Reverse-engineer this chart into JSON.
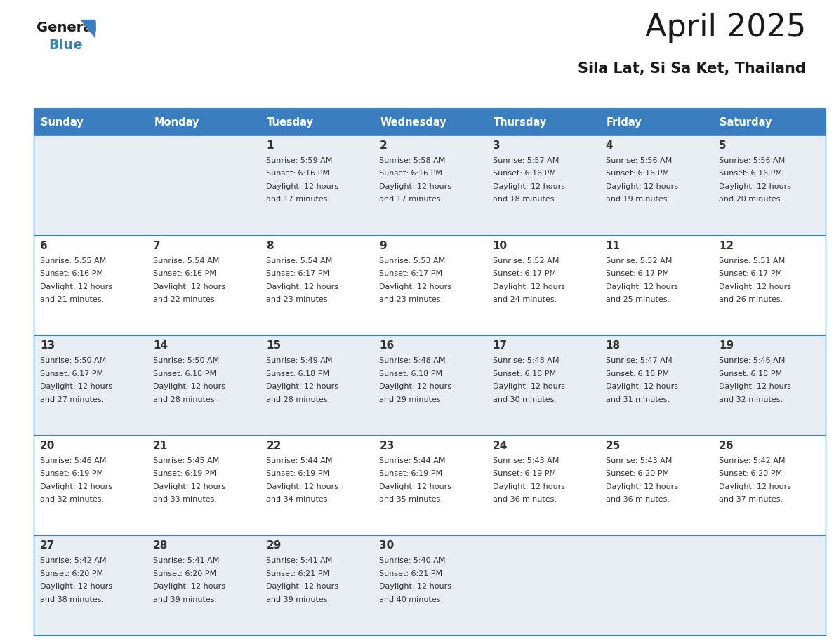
{
  "title": "April 2025",
  "subtitle": "Sila Lat, Si Sa Ket, Thailand",
  "header_color": "#3a7ebf",
  "header_text_color": "#ffffff",
  "cell_bg_color": "#e8eef4",
  "cell_bg_white": "#ffffff",
  "border_color": "#3a7ebf",
  "text_color": "#333333",
  "days_of_week": [
    "Sunday",
    "Monday",
    "Tuesday",
    "Wednesday",
    "Thursday",
    "Friday",
    "Saturday"
  ],
  "weeks": [
    [
      {
        "day": null,
        "info": null
      },
      {
        "day": null,
        "info": null
      },
      {
        "day": 1,
        "info": {
          "sunrise": "5:59 AM",
          "sunset": "6:16 PM",
          "daylight": "12 hours and 17 minutes."
        }
      },
      {
        "day": 2,
        "info": {
          "sunrise": "5:58 AM",
          "sunset": "6:16 PM",
          "daylight": "12 hours and 17 minutes."
        }
      },
      {
        "day": 3,
        "info": {
          "sunrise": "5:57 AM",
          "sunset": "6:16 PM",
          "daylight": "12 hours and 18 minutes."
        }
      },
      {
        "day": 4,
        "info": {
          "sunrise": "5:56 AM",
          "sunset": "6:16 PM",
          "daylight": "12 hours and 19 minutes."
        }
      },
      {
        "day": 5,
        "info": {
          "sunrise": "5:56 AM",
          "sunset": "6:16 PM",
          "daylight": "12 hours and 20 minutes."
        }
      }
    ],
    [
      {
        "day": 6,
        "info": {
          "sunrise": "5:55 AM",
          "sunset": "6:16 PM",
          "daylight": "12 hours and 21 minutes."
        }
      },
      {
        "day": 7,
        "info": {
          "sunrise": "5:54 AM",
          "sunset": "6:16 PM",
          "daylight": "12 hours and 22 minutes."
        }
      },
      {
        "day": 8,
        "info": {
          "sunrise": "5:54 AM",
          "sunset": "6:17 PM",
          "daylight": "12 hours and 23 minutes."
        }
      },
      {
        "day": 9,
        "info": {
          "sunrise": "5:53 AM",
          "sunset": "6:17 PM",
          "daylight": "12 hours and 23 minutes."
        }
      },
      {
        "day": 10,
        "info": {
          "sunrise": "5:52 AM",
          "sunset": "6:17 PM",
          "daylight": "12 hours and 24 minutes."
        }
      },
      {
        "day": 11,
        "info": {
          "sunrise": "5:52 AM",
          "sunset": "6:17 PM",
          "daylight": "12 hours and 25 minutes."
        }
      },
      {
        "day": 12,
        "info": {
          "sunrise": "5:51 AM",
          "sunset": "6:17 PM",
          "daylight": "12 hours and 26 minutes."
        }
      }
    ],
    [
      {
        "day": 13,
        "info": {
          "sunrise": "5:50 AM",
          "sunset": "6:17 PM",
          "daylight": "12 hours and 27 minutes."
        }
      },
      {
        "day": 14,
        "info": {
          "sunrise": "5:50 AM",
          "sunset": "6:18 PM",
          "daylight": "12 hours and 28 minutes."
        }
      },
      {
        "day": 15,
        "info": {
          "sunrise": "5:49 AM",
          "sunset": "6:18 PM",
          "daylight": "12 hours and 28 minutes."
        }
      },
      {
        "day": 16,
        "info": {
          "sunrise": "5:48 AM",
          "sunset": "6:18 PM",
          "daylight": "12 hours and 29 minutes."
        }
      },
      {
        "day": 17,
        "info": {
          "sunrise": "5:48 AM",
          "sunset": "6:18 PM",
          "daylight": "12 hours and 30 minutes."
        }
      },
      {
        "day": 18,
        "info": {
          "sunrise": "5:47 AM",
          "sunset": "6:18 PM",
          "daylight": "12 hours and 31 minutes."
        }
      },
      {
        "day": 19,
        "info": {
          "sunrise": "5:46 AM",
          "sunset": "6:18 PM",
          "daylight": "12 hours and 32 minutes."
        }
      }
    ],
    [
      {
        "day": 20,
        "info": {
          "sunrise": "5:46 AM",
          "sunset": "6:19 PM",
          "daylight": "12 hours and 32 minutes."
        }
      },
      {
        "day": 21,
        "info": {
          "sunrise": "5:45 AM",
          "sunset": "6:19 PM",
          "daylight": "12 hours and 33 minutes."
        }
      },
      {
        "day": 22,
        "info": {
          "sunrise": "5:44 AM",
          "sunset": "6:19 PM",
          "daylight": "12 hours and 34 minutes."
        }
      },
      {
        "day": 23,
        "info": {
          "sunrise": "5:44 AM",
          "sunset": "6:19 PM",
          "daylight": "12 hours and 35 minutes."
        }
      },
      {
        "day": 24,
        "info": {
          "sunrise": "5:43 AM",
          "sunset": "6:19 PM",
          "daylight": "12 hours and 36 minutes."
        }
      },
      {
        "day": 25,
        "info": {
          "sunrise": "5:43 AM",
          "sunset": "6:20 PM",
          "daylight": "12 hours and 36 minutes."
        }
      },
      {
        "day": 26,
        "info": {
          "sunrise": "5:42 AM",
          "sunset": "6:20 PM",
          "daylight": "12 hours and 37 minutes."
        }
      }
    ],
    [
      {
        "day": 27,
        "info": {
          "sunrise": "5:42 AM",
          "sunset": "6:20 PM",
          "daylight": "12 hours and 38 minutes."
        }
      },
      {
        "day": 28,
        "info": {
          "sunrise": "5:41 AM",
          "sunset": "6:20 PM",
          "daylight": "12 hours and 39 minutes."
        }
      },
      {
        "day": 29,
        "info": {
          "sunrise": "5:41 AM",
          "sunset": "6:21 PM",
          "daylight": "12 hours and 39 minutes."
        }
      },
      {
        "day": 30,
        "info": {
          "sunrise": "5:40 AM",
          "sunset": "6:21 PM",
          "daylight": "12 hours and 40 minutes."
        }
      },
      {
        "day": null,
        "info": null
      },
      {
        "day": null,
        "info": null
      },
      {
        "day": null,
        "info": null
      }
    ]
  ]
}
